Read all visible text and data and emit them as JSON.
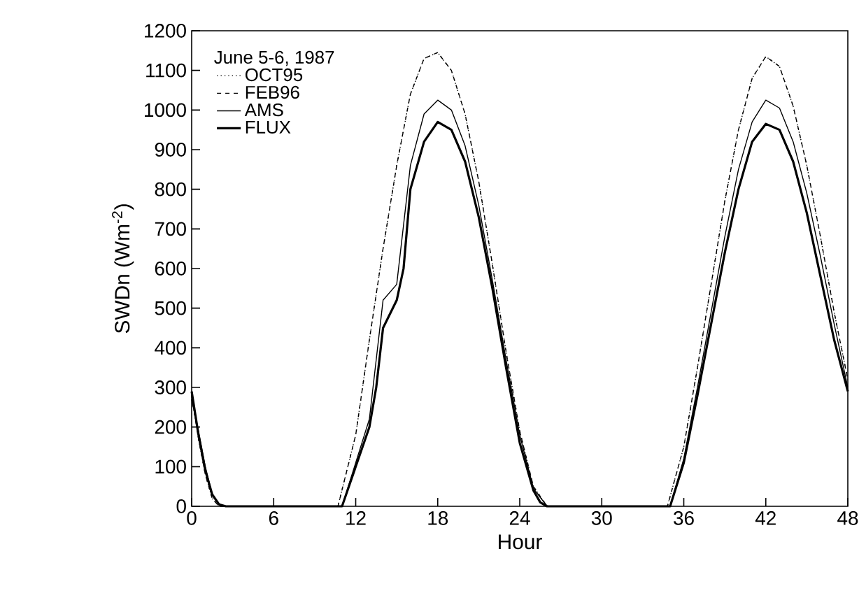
{
  "chart_data": {
    "type": "line",
    "xlabel": "Hour",
    "ylabel": "SWDn (Wm$^{-2}$)",
    "legend_title": "June 5-6, 1987",
    "xlim": [
      0,
      48
    ],
    "xticks": [
      0,
      6,
      12,
      18,
      24,
      30,
      36,
      42,
      48
    ],
    "ylim": [
      0,
      1200
    ],
    "yticks": [
      0,
      100,
      200,
      300,
      400,
      500,
      600,
      700,
      800,
      900,
      1000,
      1100,
      1200
    ],
    "legend": "top left",
    "series": [
      {
        "name": "OCT95",
        "color": "#000000",
        "line_style": "dotted",
        "x": [
          0,
          0.5,
          1,
          1.5,
          2,
          10.7,
          12,
          13,
          14,
          15,
          16,
          17,
          18,
          19,
          20,
          21,
          22,
          23,
          24,
          25,
          26,
          34.8,
          36,
          37,
          38,
          39,
          40,
          41,
          42,
          43,
          44,
          45,
          46,
          47,
          48
        ],
        "values": [
          280,
          170,
          80,
          20,
          0,
          0,
          180,
          420,
          650,
          860,
          1040,
          1130,
          1145,
          1100,
          990,
          820,
          610,
          390,
          190,
          50,
          0,
          0,
          150,
          350,
          560,
          770,
          950,
          1080,
          1135,
          1110,
          1010,
          860,
          680,
          490,
          320
        ]
      },
      {
        "name": "FEB96",
        "color": "#000000",
        "line_style": "dashed",
        "x": [
          0,
          0.5,
          1,
          1.5,
          2,
          10.7,
          12,
          13,
          14,
          15,
          16,
          17,
          18,
          19,
          20,
          21,
          22,
          23,
          24,
          25,
          26,
          34.8,
          36,
          37,
          38,
          39,
          40,
          41,
          42,
          43,
          44,
          45,
          46,
          47,
          48
        ],
        "values": [
          280,
          170,
          80,
          20,
          0,
          0,
          180,
          420,
          650,
          860,
          1040,
          1130,
          1145,
          1100,
          990,
          820,
          610,
          390,
          190,
          50,
          0,
          0,
          150,
          350,
          560,
          770,
          950,
          1080,
          1135,
          1110,
          1010,
          860,
          680,
          490,
          320
        ]
      },
      {
        "name": "AMS",
        "color": "#000000",
        "line_style": "solid",
        "x": [
          0,
          0.5,
          1,
          1.5,
          2,
          2.5,
          11,
          12,
          13,
          14,
          15,
          16,
          17,
          18,
          19,
          20,
          21,
          22,
          23,
          24,
          25,
          26,
          35,
          36,
          37,
          38,
          39,
          40,
          41,
          42,
          43,
          44,
          45,
          46,
          47,
          48
        ],
        "values": [
          270,
          190,
          100,
          30,
          5,
          0,
          0,
          110,
          220,
          520,
          560,
          860,
          990,
          1025,
          1000,
          910,
          760,
          570,
          370,
          180,
          45,
          0,
          0,
          120,
          300,
          490,
          680,
          850,
          970,
          1025,
          1005,
          920,
          790,
          630,
          460,
          300
        ]
      },
      {
        "name": "FLUX",
        "color": "#000000",
        "line_style": "solid",
        "x": [
          0,
          0.5,
          1,
          1.5,
          2,
          2.5,
          11,
          12,
          13,
          13.5,
          14,
          15,
          15.5,
          16,
          17,
          18,
          19,
          20,
          21,
          22,
          23,
          24,
          25,
          25.5,
          26,
          35,
          36,
          37,
          38,
          39,
          40,
          41,
          42,
          43,
          44,
          45,
          46,
          47,
          48
        ],
        "values": [
          290,
          180,
          90,
          30,
          5,
          0,
          0,
          100,
          200,
          300,
          450,
          520,
          600,
          800,
          920,
          970,
          950,
          870,
          730,
          550,
          350,
          160,
          40,
          10,
          0,
          0,
          110,
          280,
          460,
          640,
          800,
          920,
          965,
          950,
          870,
          740,
          580,
          420,
          290
        ]
      }
    ]
  }
}
